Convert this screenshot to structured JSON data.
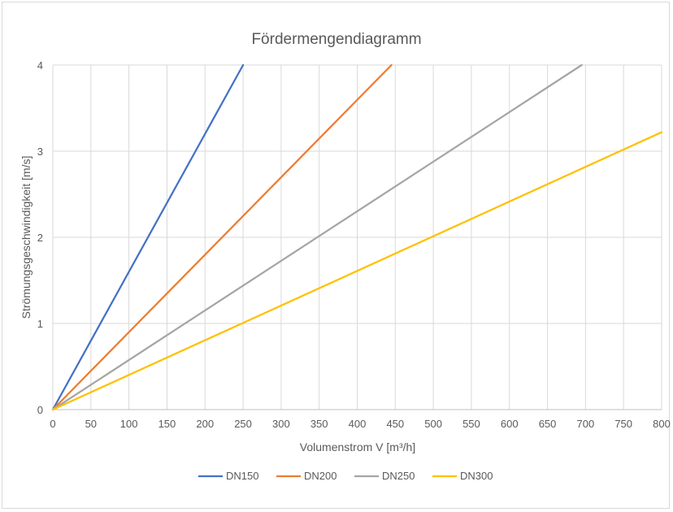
{
  "chart_data": {
    "type": "line",
    "title": "Fördermengendiagramm",
    "xlabel": "Volumenstrom V [m³/h]",
    "ylabel": "Strömungsgeschwindigkeit [m/s]",
    "xlim": [
      0,
      800
    ],
    "ylim": [
      0,
      4
    ],
    "x_ticks": [
      0,
      50,
      100,
      150,
      200,
      250,
      300,
      350,
      400,
      450,
      500,
      550,
      600,
      650,
      700,
      750,
      800
    ],
    "y_ticks": [
      0,
      1,
      2,
      3,
      4
    ],
    "grid": true,
    "legend_position": "bottom",
    "series": [
      {
        "name": "DN150",
        "color": "#4472c4",
        "x": [
          0,
          250
        ],
        "y": [
          0,
          4.0
        ]
      },
      {
        "name": "DN200",
        "color": "#ed7d31",
        "x": [
          0,
          445
        ],
        "y": [
          0,
          4.0
        ]
      },
      {
        "name": "DN250",
        "color": "#a5a5a5",
        "x": [
          0,
          695
        ],
        "y": [
          0,
          4.0
        ]
      },
      {
        "name": "DN300",
        "color": "#ffc000",
        "x": [
          0,
          800
        ],
        "y": [
          0,
          3.22
        ]
      }
    ]
  }
}
